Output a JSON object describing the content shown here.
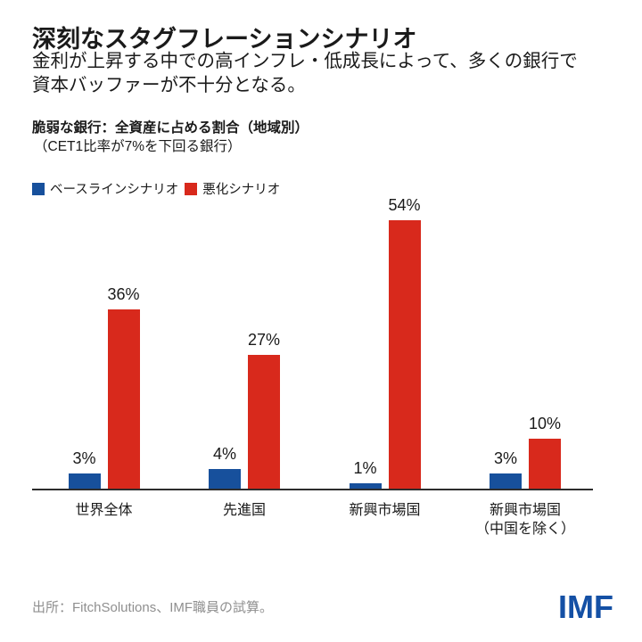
{
  "header": {
    "title": "深刻なスタグフレーションシナリオ",
    "subtitle_line1": "金利が上昇する中での高インフレ・低成長によって、多くの銀行で",
    "subtitle_line2": "資本バッファーが不十分となる。"
  },
  "chart": {
    "label": "脆弱な銀行：全資産に占める割合（地域別）",
    "sublabel": "（CET1比率が7%を下回る銀行）"
  },
  "legend": [
    {
      "label": "ベースラインシナリオ",
      "color": "#17509c"
    },
    {
      "label": "悪化シナリオ",
      "color": "#d8291c"
    }
  ],
  "chart_data": {
    "type": "bar",
    "title": "脆弱な銀行：全資産に占める割合（地域別）",
    "subtitle": "（CET1比率が7%を下回る銀行）",
    "categories": [
      "世界全体",
      "先進国",
      "新興市場国",
      "新興市場国\n（中国を除く）"
    ],
    "series": [
      {
        "name": "ベースラインシナリオ",
        "color": "#17509c",
        "values": [
          3,
          4,
          1,
          3
        ]
      },
      {
        "name": "悪化シナリオ",
        "color": "#d8291c",
        "values": [
          36,
          27,
          54,
          10
        ]
      }
    ],
    "value_suffix": "%",
    "ylim": [
      0,
      57
    ],
    "grid": false,
    "legend_position": "top-left"
  },
  "footer": {
    "source": "出所：FitchSolutions、IMF職員の試算。",
    "logo": "IMF"
  }
}
